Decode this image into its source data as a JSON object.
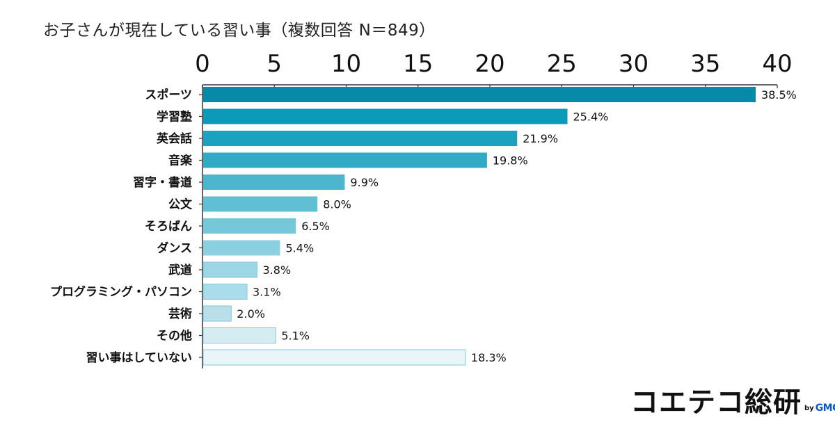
{
  "chart_data": {
    "type": "bar",
    "orientation": "horizontal",
    "title": "お子さんが現在している習い事（複数回答 N＝849）",
    "xlim": [
      0,
      40
    ],
    "x_ticks": [
      "0",
      "5",
      "10",
      "15",
      "20",
      "25",
      "30",
      "35",
      "40"
    ],
    "x_tick_values": [
      0,
      5,
      10,
      15,
      20,
      25,
      30,
      35,
      40
    ],
    "categories": [
      "スポーツ",
      "学習塾",
      "英会話",
      "音楽",
      "習字・書道",
      "公文",
      "そろばん",
      "ダンス",
      "武道",
      "プログラミング・パソコン",
      "芸術",
      "その他",
      "習い事はしていない"
    ],
    "values": [
      38.5,
      25.4,
      21.9,
      19.8,
      9.9,
      8.0,
      6.5,
      5.4,
      3.8,
      3.1,
      2.0,
      5.1,
      18.3
    ],
    "value_labels": [
      "38.5%",
      "25.4%",
      "21.9%",
      "19.8%",
      "9.9%",
      "8.0%",
      "6.5%",
      "5.4%",
      "3.8%",
      "3.1%",
      "2.0%",
      "5.1%",
      "18.3%"
    ],
    "bar_colors": [
      "#078aa8",
      "#0b9bb8",
      "#1ba2bf",
      "#31aac5",
      "#4bb6cd",
      "#61bfd4",
      "#77c7da",
      "#8ad0e0",
      "#9dd7e5",
      "#aaddea",
      "#badfe9",
      "#d6ecf3",
      "#eaf5f9"
    ],
    "grid": false,
    "legend": "none"
  },
  "brand": {
    "name": "コエテコ総研",
    "by": "by",
    "company": "GMO"
  }
}
